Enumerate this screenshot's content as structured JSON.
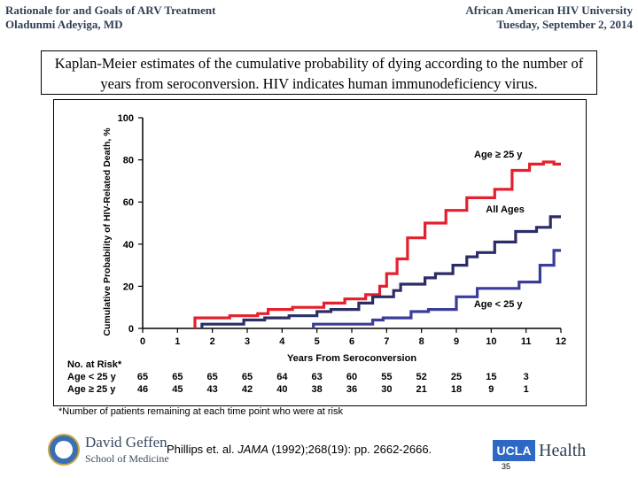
{
  "header": {
    "left_line1": "Rationale for and Goals of ARV Treatment",
    "left_line2": "Oladunmi Adeyiga, MD",
    "right_line1": "African American HIV University",
    "right_line2": "Tuesday, September 2, 2014"
  },
  "caption": "Kaplan-Meier estimates of the cumulative probability of dying according to the number of years from seroconversion. HIV indicates human immunodeficiency virus.",
  "footnote": "*Number of patients remaining at each time point who were at risk",
  "citation": {
    "prefix": "Phillips et. al. ",
    "journal": "JAMA",
    "suffix": " (1992);268(19):  pp. 2662-2666."
  },
  "logos": {
    "geffen_name": "David Geffen",
    "geffen_sub": "School of Medicine",
    "ucla_box": "UCLA",
    "ucla_health": "Health",
    "ucla_blue": "#2d68c4"
  },
  "page_number": "35",
  "chart_data": {
    "type": "line",
    "step": true,
    "xlabel": "Years From Seroconversion",
    "ylabel": "Cumulative Probability of HIV-Related Death, %",
    "xlim": [
      0,
      12
    ],
    "ylim": [
      0,
      100
    ],
    "x_ticks": [
      "0",
      "1",
      "2",
      "3",
      "4",
      "5",
      "6",
      "7",
      "8",
      "9",
      "10",
      "11",
      "12"
    ],
    "y_ticks": [
      "0",
      "20",
      "40",
      "60",
      "80",
      "100"
    ],
    "series": [
      {
        "name": "Age ≥ 25 y",
        "color": "#e5202e",
        "points": [
          [
            1.5,
            0
          ],
          [
            1.5,
            5
          ],
          [
            2.5,
            5
          ],
          [
            2.5,
            6
          ],
          [
            3.3,
            6
          ],
          [
            3.3,
            7
          ],
          [
            3.6,
            7
          ],
          [
            3.6,
            9
          ],
          [
            4.3,
            9
          ],
          [
            4.3,
            10
          ],
          [
            5.2,
            10
          ],
          [
            5.2,
            12
          ],
          [
            5.8,
            12
          ],
          [
            5.8,
            14
          ],
          [
            6.4,
            14
          ],
          [
            6.4,
            16
          ],
          [
            6.8,
            16
          ],
          [
            6.8,
            20
          ],
          [
            7.0,
            20
          ],
          [
            7.0,
            26
          ],
          [
            7.3,
            26
          ],
          [
            7.3,
            33
          ],
          [
            7.6,
            33
          ],
          [
            7.6,
            43
          ],
          [
            8.1,
            43
          ],
          [
            8.1,
            50
          ],
          [
            8.7,
            50
          ],
          [
            8.7,
            56
          ],
          [
            9.3,
            56
          ],
          [
            9.3,
            62
          ],
          [
            10.1,
            62
          ],
          [
            10.1,
            66
          ],
          [
            10.6,
            66
          ],
          [
            10.6,
            75
          ],
          [
            11.1,
            75
          ],
          [
            11.1,
            78
          ],
          [
            11.5,
            78
          ],
          [
            11.5,
            79
          ],
          [
            11.8,
            79
          ],
          [
            11.8,
            78
          ],
          [
            12.0,
            78
          ]
        ]
      },
      {
        "name": "All Ages",
        "color": "#2b2e66",
        "points": [
          [
            1.7,
            0
          ],
          [
            1.7,
            2
          ],
          [
            2.9,
            2
          ],
          [
            2.9,
            4
          ],
          [
            3.5,
            4
          ],
          [
            3.5,
            5
          ],
          [
            4.2,
            5
          ],
          [
            4.2,
            6
          ],
          [
            5.0,
            6
          ],
          [
            5.0,
            8
          ],
          [
            5.4,
            8
          ],
          [
            5.4,
            9
          ],
          [
            6.2,
            9
          ],
          [
            6.2,
            12
          ],
          [
            6.6,
            12
          ],
          [
            6.6,
            15
          ],
          [
            7.2,
            15
          ],
          [
            7.2,
            18
          ],
          [
            7.4,
            18
          ],
          [
            7.4,
            21
          ],
          [
            8.1,
            21
          ],
          [
            8.1,
            24
          ],
          [
            8.4,
            24
          ],
          [
            8.4,
            26
          ],
          [
            8.9,
            26
          ],
          [
            8.9,
            30
          ],
          [
            9.3,
            30
          ],
          [
            9.3,
            34
          ],
          [
            9.6,
            34
          ],
          [
            9.6,
            36
          ],
          [
            10.1,
            36
          ],
          [
            10.1,
            41
          ],
          [
            10.7,
            41
          ],
          [
            10.7,
            46
          ],
          [
            11.3,
            46
          ],
          [
            11.3,
            48
          ],
          [
            11.7,
            48
          ],
          [
            11.7,
            53
          ],
          [
            12.0,
            53
          ]
        ]
      },
      {
        "name": "Age < 25 y",
        "color": "#3a3d9a",
        "points": [
          [
            4.9,
            0
          ],
          [
            4.9,
            2
          ],
          [
            6.6,
            2
          ],
          [
            6.6,
            4
          ],
          [
            6.9,
            4
          ],
          [
            6.9,
            5
          ],
          [
            7.7,
            5
          ],
          [
            7.7,
            8
          ],
          [
            8.2,
            8
          ],
          [
            8.2,
            9
          ],
          [
            9.0,
            9
          ],
          [
            9.0,
            15
          ],
          [
            9.6,
            15
          ],
          [
            9.6,
            19
          ],
          [
            10.8,
            19
          ],
          [
            10.8,
            22
          ],
          [
            11.4,
            22
          ],
          [
            11.4,
            30
          ],
          [
            11.8,
            30
          ],
          [
            11.8,
            37
          ],
          [
            12.0,
            37
          ]
        ]
      }
    ],
    "annotations": [
      {
        "text": "Age ≥ 25 y",
        "x": 10.2,
        "y": 81
      },
      {
        "text": "All Ages",
        "x": 10.4,
        "y": 55
      },
      {
        "text": "Age < 25 y",
        "x": 10.2,
        "y": 10
      }
    ],
    "risk_table": {
      "title": "No. at Risk*",
      "rows": [
        {
          "label": "Age < 25 y",
          "values": [
            "65",
            "65",
            "65",
            "65",
            "64",
            "63",
            "60",
            "55",
            "52",
            "25",
            "15",
            "3"
          ]
        },
        {
          "label": "Age ≥ 25 y",
          "values": [
            "46",
            "45",
            "43",
            "42",
            "40",
            "38",
            "36",
            "30",
            "21",
            "18",
            "9",
            "1"
          ]
        }
      ]
    }
  }
}
